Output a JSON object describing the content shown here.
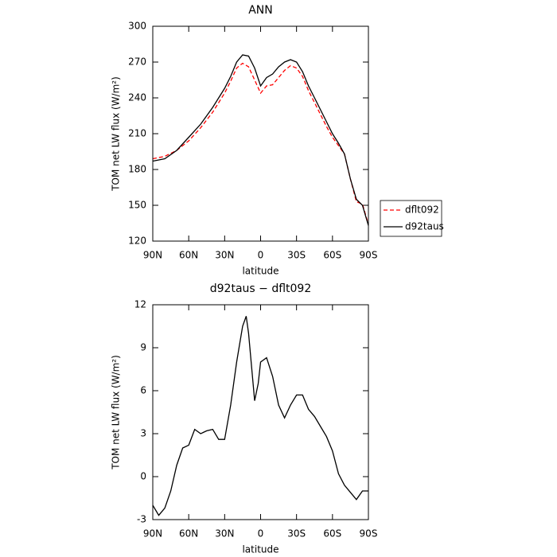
{
  "chart_data": [
    {
      "type": "line",
      "title": "ANN",
      "xlabel": "latitude",
      "ylabel": "TOM net LW flux (W/m²)",
      "x": [
        90,
        80,
        70,
        60,
        50,
        40,
        30,
        25,
        20,
        15,
        10,
        5,
        0,
        -5,
        -10,
        -15,
        -20,
        -25,
        -30,
        -35,
        -40,
        -45,
        -50,
        -55,
        -60,
        -65,
        -70,
        -75,
        -80,
        -85,
        -90
      ],
      "series": [
        {
          "name": "dflt092",
          "color": "#ff0000",
          "dash": true,
          "values": [
            189,
            191,
            196,
            204,
            215,
            228,
            244,
            254,
            265,
            269,
            266,
            255,
            244,
            250,
            251,
            257,
            263,
            267,
            265,
            258,
            246,
            236,
            226,
            216,
            207,
            200,
            193,
            172,
            153,
            151,
            134
          ]
        },
        {
          "name": "d92taus",
          "color": "#000000",
          "dash": false,
          "values": [
            187,
            189,
            196,
            207,
            218,
            232,
            248,
            258,
            270,
            276,
            275,
            265,
            250,
            257,
            260,
            266,
            270,
            272,
            270,
            262,
            250,
            240,
            230,
            220,
            210,
            202,
            193,
            172,
            155,
            150,
            133
          ]
        }
      ],
      "xlim": [
        90,
        -90
      ],
      "xticks": [
        {
          "value": 90,
          "label": "90N"
        },
        {
          "value": 60,
          "label": "60N"
        },
        {
          "value": 30,
          "label": "30N"
        },
        0,
        {
          "value": -30,
          "label": "30S"
        },
        {
          "value": -60,
          "label": "60S"
        },
        {
          "value": -90,
          "label": "90S"
        }
      ],
      "ylim": [
        120,
        300
      ],
      "yticks": [
        120,
        150,
        180,
        210,
        240,
        270,
        300
      ],
      "legend": "right"
    },
    {
      "type": "line",
      "title": "d92taus − dflt092",
      "xlabel": "latitude",
      "ylabel": "TOM net LW flux (W/m²)",
      "x": [
        90,
        85,
        80,
        75,
        70,
        65,
        60,
        55,
        50,
        45,
        40,
        35,
        30,
        25,
        20,
        15,
        12,
        10,
        5,
        2,
        0,
        -5,
        -10,
        -15,
        -20,
        -25,
        -30,
        -35,
        -40,
        -45,
        -50,
        -55,
        -60,
        -65,
        -70,
        -75,
        -80,
        -85,
        -90
      ],
      "series": [
        {
          "color": "#000000",
          "dash": false,
          "values": [
            -2.0,
            -2.7,
            -2.2,
            -1.0,
            0.8,
            2.0,
            2.2,
            3.3,
            3.0,
            3.2,
            3.3,
            2.6,
            2.6,
            5.0,
            8.0,
            10.5,
            11.2,
            10.0,
            5.3,
            6.5,
            8.0,
            8.3,
            7.0,
            5.0,
            4.1,
            5.0,
            5.7,
            5.7,
            4.7,
            4.2,
            3.5,
            2.8,
            1.8,
            0.2,
            -0.6,
            -1.1,
            -1.6,
            -1.0,
            -1.0
          ]
        }
      ],
      "xlim": [
        90,
        -90
      ],
      "xticks": [
        {
          "value": 90,
          "label": "90N"
        },
        {
          "value": 60,
          "label": "60N"
        },
        {
          "value": 30,
          "label": "30N"
        },
        0,
        {
          "value": -30,
          "label": "30S"
        },
        {
          "value": -60,
          "label": "60S"
        },
        {
          "value": -90,
          "label": "90S"
        }
      ],
      "ylim": [
        -3,
        12
      ],
      "yticks": [
        -3,
        0,
        3,
        6,
        9,
        12
      ]
    }
  ]
}
